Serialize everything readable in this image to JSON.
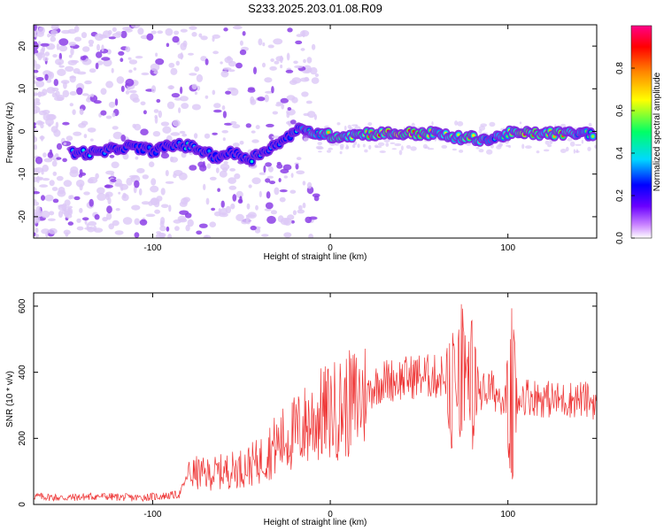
{
  "title": "S233.2025.203.01.08.R09",
  "colors": {
    "snr_line": "#ee3333",
    "ridge_bg_light": "#dcc8f6",
    "ridge_violet": "#7b22e0"
  },
  "colorbar": {
    "label": "Normalized spectral amplitude",
    "ticks": [
      "0.0",
      "0.2",
      "0.4",
      "0.6",
      "0.8"
    ],
    "colormap": [
      "#ffffff",
      "#cc88ff",
      "#6a00ff",
      "#0000ff",
      "#00d8ff",
      "#00ff66",
      "#ffff00",
      "#ff8800",
      "#ff0000",
      "#ff0088"
    ]
  },
  "chart_data": [
    {
      "type": "heatmap",
      "title": "S233.2025.203.01.08.R09",
      "xlabel": "Height of straight line (km)",
      "ylabel": "Frequency (Hz)",
      "xlim": [
        -167,
        150
      ],
      "ylim": [
        -25,
        25
      ],
      "x_ticks": [
        "-100",
        "0",
        "100"
      ],
      "y_ticks": [
        "20",
        "10",
        "0",
        "-10",
        "-20"
      ],
      "ridge": {
        "x": [
          -145,
          -130,
          -115,
          -100,
          -85,
          -75,
          -65,
          -55,
          -45,
          -35,
          -25,
          -20,
          -15,
          -5,
          0,
          10,
          20,
          30,
          40,
          50,
          60,
          70,
          80,
          90,
          100,
          110,
          120,
          130,
          140,
          148
        ],
        "freq": [
          -5,
          -5,
          -3.5,
          -4.5,
          -3,
          -4,
          -6,
          -5,
          -6.5,
          -4,
          -2,
          0.5,
          0,
          -0.5,
          -1,
          -1,
          -0.5,
          -0.5,
          -0.5,
          -0.5,
          -0.5,
          -1.5,
          -1.5,
          -2,
          -0.5,
          -0.5,
          -0.5,
          -0.5,
          -0.5,
          -0.5
        ],
        "amplitude": [
          0.35,
          0.45,
          0.3,
          0.3,
          0.35,
          0.45,
          0.3,
          0.3,
          0.45,
          0.35,
          0.3,
          0.45,
          0.55,
          0.65,
          0.8,
          0.7,
          0.75,
          0.85,
          0.95,
          0.9,
          0.7,
          0.6,
          0.8,
          0.5,
          0.7,
          0.9,
          0.75,
          0.85,
          0.6,
          0.55
        ]
      },
      "colorbar_label": "Normalized spectral amplitude"
    },
    {
      "type": "line",
      "xlabel": "Height of straight line (km)",
      "ylabel": "SNR (10 * v/v)",
      "xlim": [
        -167,
        150
      ],
      "ylim": [
        0,
        640
      ],
      "x_ticks": [
        "-100",
        "0",
        "100"
      ],
      "y_ticks": [
        "0",
        "200",
        "400",
        "600"
      ],
      "x": [
        -167,
        -150,
        -130,
        -110,
        -95,
        -85,
        -80,
        -75,
        -70,
        -60,
        -50,
        -45,
        -40,
        -35,
        -30,
        -25,
        -20,
        -15,
        -10,
        -5,
        0,
        10,
        20,
        25,
        30,
        40,
        50,
        60,
        65,
        70,
        75,
        80,
        85,
        90,
        95,
        100,
        102,
        105,
        110,
        120,
        130,
        140,
        150
      ],
      "y": [
        25,
        20,
        25,
        20,
        25,
        30,
        90,
        95,
        90,
        100,
        110,
        120,
        130,
        160,
        180,
        200,
        215,
        235,
        255,
        270,
        280,
        300,
        330,
        360,
        375,
        380,
        390,
        385,
        395,
        385,
        400,
        380,
        340,
        350,
        330,
        330,
        320,
        320,
        330,
        320,
        315,
        320,
        310
      ],
      "spikes": [
        {
          "x": 68,
          "hi": 580,
          "lo": 130
        },
        {
          "x": 74,
          "hi": 625,
          "lo": 110
        },
        {
          "x": 80,
          "hi": 600,
          "lo": 150
        },
        {
          "x": 102,
          "hi": 640,
          "lo": 15
        }
      ]
    }
  ]
}
